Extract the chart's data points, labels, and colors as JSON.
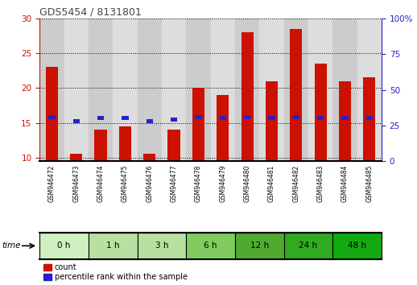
{
  "title": "GDS5454 / 8131801",
  "samples": [
    "GSM946472",
    "GSM946473",
    "GSM946474",
    "GSM946475",
    "GSM946476",
    "GSM946477",
    "GSM946478",
    "GSM946479",
    "GSM946480",
    "GSM946481",
    "GSM946482",
    "GSM946483",
    "GSM946484",
    "GSM946485"
  ],
  "count_values": [
    23,
    10.5,
    14,
    14.5,
    10.5,
    14,
    20,
    19,
    28,
    21,
    28.5,
    23.5,
    21,
    21.5
  ],
  "percentile_values": [
    31,
    28,
    30,
    30,
    28,
    29,
    31,
    30,
    31,
    30,
    31,
    30,
    30,
    30
  ],
  "time_groups": [
    {
      "label": "0 h",
      "indices": [
        0,
        1
      ]
    },
    {
      "label": "1 h",
      "indices": [
        2,
        3
      ]
    },
    {
      "label": "3 h",
      "indices": [
        4,
        5
      ]
    },
    {
      "label": "6 h",
      "indices": [
        6,
        7
      ]
    },
    {
      "label": "12 h",
      "indices": [
        8,
        9
      ]
    },
    {
      "label": "24 h",
      "indices": [
        10,
        11
      ]
    },
    {
      "label": "48 h",
      "indices": [
        12,
        13
      ]
    }
  ],
  "time_group_colors": [
    "#d0f0c0",
    "#b8e0a0",
    "#b8e0a0",
    "#80cc60",
    "#50aa30",
    "#30aa20",
    "#10aa10"
  ],
  "ylim_left": [
    9.5,
    30
  ],
  "ylim_right": [
    0,
    100
  ],
  "yticks_left": [
    10,
    15,
    20,
    25,
    30
  ],
  "yticks_right": [
    0,
    25,
    50,
    75,
    100
  ],
  "bar_color": "#cc1100",
  "percentile_color": "#2222cc",
  "plot_bg": "#ffffff",
  "col_bg_even": "#cccccc",
  "col_bg_odd": "#dddddd",
  "grid_color": "#000000",
  "title_color": "#444444",
  "left_axis_color": "#cc1100",
  "right_axis_color": "#2222cc",
  "bar_width": 0.5
}
